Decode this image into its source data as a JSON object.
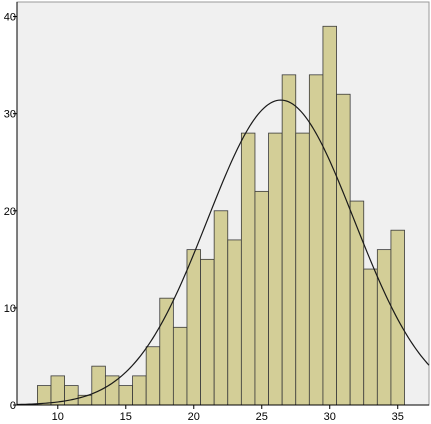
{
  "colors": {
    "plot_background": "#f0f0f0",
    "bar_fill": "#d3ce97",
    "bar_stroke": "#3a3a3a",
    "curve": "#1a1a1a",
    "axis": "#000000"
  },
  "chart_data": {
    "type": "bar",
    "title": "",
    "xlabel": "",
    "ylabel": "",
    "xlim": [
      7.0,
      37.3
    ],
    "ylim": [
      0,
      41.5
    ],
    "bin_width": 1,
    "bins": [
      {
        "x": 9,
        "count": 2
      },
      {
        "x": 10,
        "count": 3
      },
      {
        "x": 11,
        "count": 2
      },
      {
        "x": 12,
        "count": 1
      },
      {
        "x": 13,
        "count": 4
      },
      {
        "x": 14,
        "count": 3
      },
      {
        "x": 15,
        "count": 2
      },
      {
        "x": 16,
        "count": 3
      },
      {
        "x": 17,
        "count": 6
      },
      {
        "x": 18,
        "count": 11
      },
      {
        "x": 19,
        "count": 8
      },
      {
        "x": 20,
        "count": 16
      },
      {
        "x": 21,
        "count": 15
      },
      {
        "x": 22,
        "count": 20
      },
      {
        "x": 23,
        "count": 17
      },
      {
        "x": 24,
        "count": 28
      },
      {
        "x": 25,
        "count": 22
      },
      {
        "x": 26,
        "count": 28
      },
      {
        "x": 27,
        "count": 34
      },
      {
        "x": 28,
        "count": 28
      },
      {
        "x": 29,
        "count": 34
      },
      {
        "x": 30,
        "count": 39
      },
      {
        "x": 31,
        "count": 32
      },
      {
        "x": 32,
        "count": 21
      },
      {
        "x": 33,
        "count": 14
      },
      {
        "x": 34,
        "count": 16
      },
      {
        "x": 35,
        "count": 18
      }
    ],
    "x_ticks": [
      "10",
      "15",
      "20",
      "25",
      "30",
      "35"
    ],
    "y_ticks": [
      "0",
      "10",
      "20",
      "30",
      "40"
    ],
    "normal_curve": {
      "mean": 26.4,
      "sd": 5.4,
      "peak": 31.4
    },
    "grid": false,
    "legend": "none"
  }
}
